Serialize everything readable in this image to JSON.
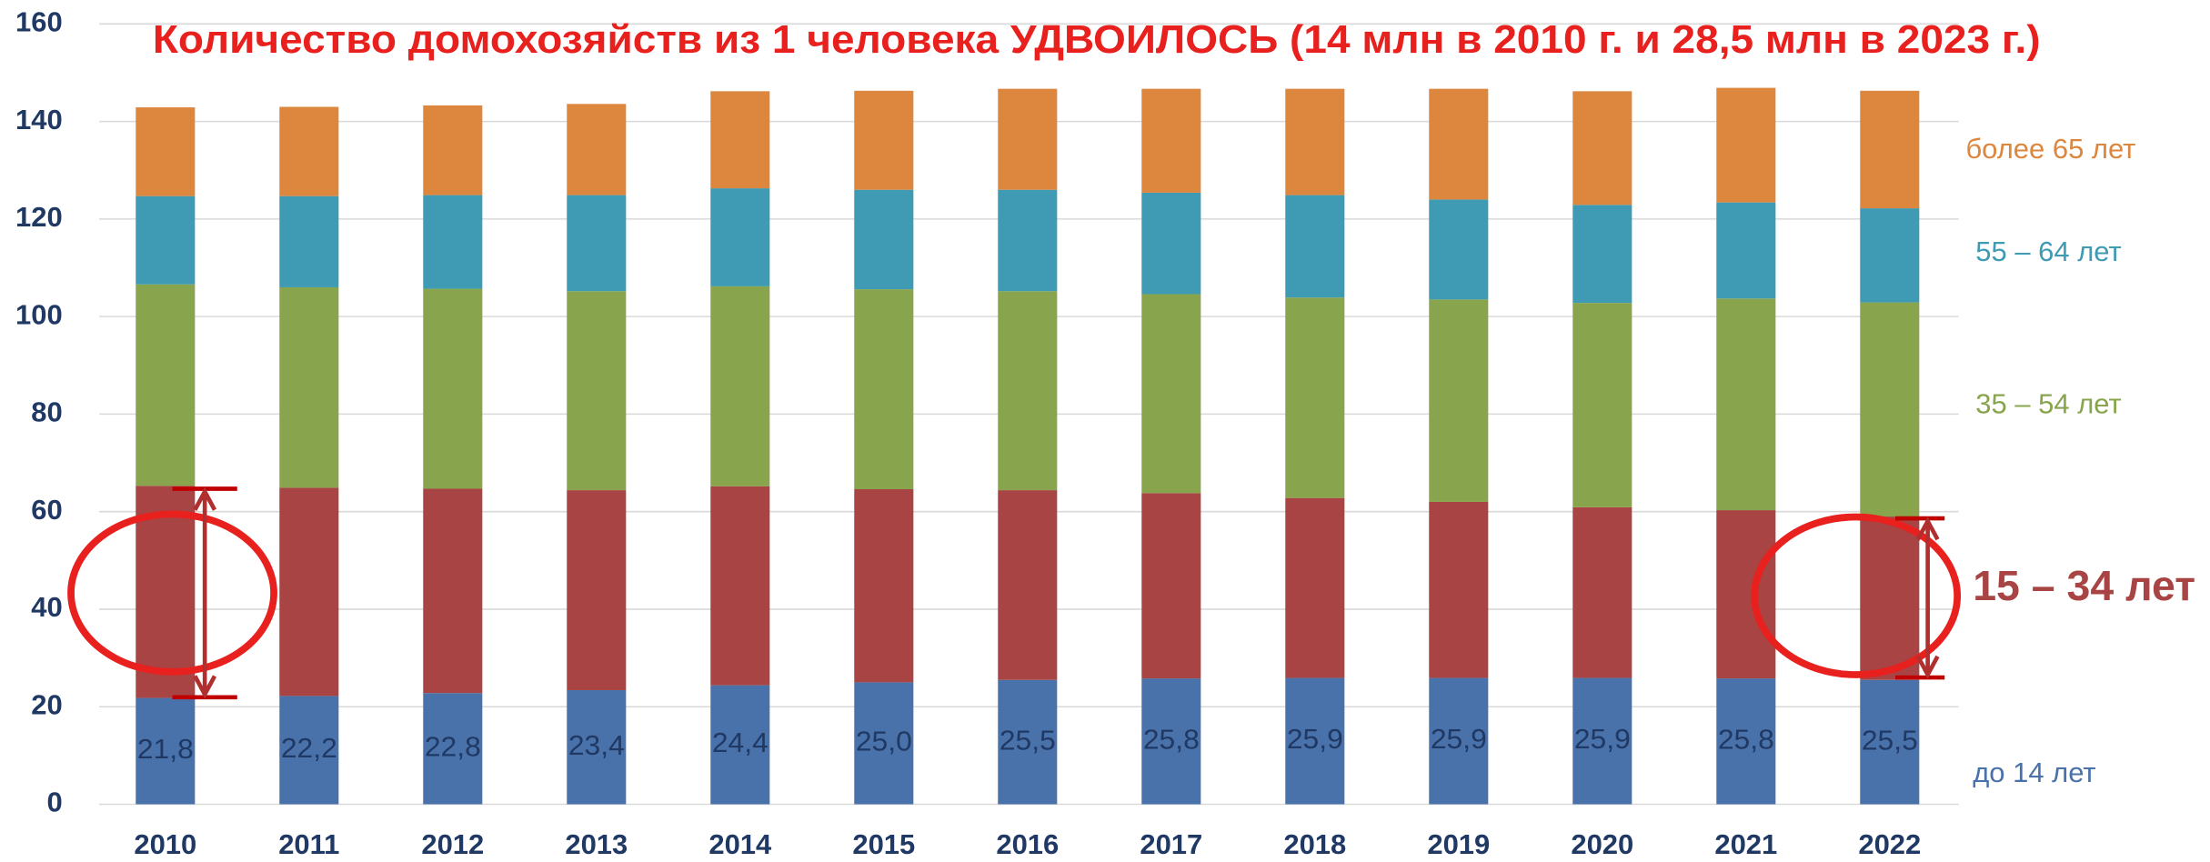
{
  "chart_data": {
    "type": "stacked_bar",
    "title": "Количество домохозяйств из 1 человека УДВОИЛОСЬ (14 млн в 2010 г. и 28,5 млн в 2023 г.)",
    "categories": [
      "2010",
      "2011",
      "2012",
      "2013",
      "2014",
      "2015",
      "2016",
      "2017",
      "2018",
      "2019",
      "2020",
      "2021",
      "2022"
    ],
    "series": [
      {
        "name": "до 14 лет",
        "color": "#4a72aa",
        "values": [
          21.8,
          22.2,
          22.8,
          23.4,
          24.4,
          25.0,
          25.5,
          25.8,
          25.9,
          25.9,
          25.9,
          25.8,
          25.5
        ],
        "value_labels": [
          "21,8",
          "22,2",
          "22,8",
          "23,4",
          "24,4",
          "25,0",
          "25,5",
          "25,8",
          "25,9",
          "25,9",
          "25,9",
          "25,8",
          "25,5"
        ]
      },
      {
        "name": "15 – 34 лет",
        "color": "#a84444",
        "values": [
          43.5,
          42.7,
          41.9,
          41.0,
          40.8,
          39.6,
          38.9,
          38.0,
          36.9,
          36.1,
          35.0,
          34.5,
          33.5
        ]
      },
      {
        "name": "35 – 54 лет",
        "color": "#88a44c",
        "values": [
          41.3,
          41.1,
          41.0,
          40.8,
          41.0,
          41.0,
          40.8,
          40.8,
          41.1,
          41.5,
          41.9,
          43.4,
          43.9
        ]
      },
      {
        "name": "55 – 64 лет",
        "color": "#3f9bb3",
        "values": [
          18.1,
          18.7,
          19.2,
          19.7,
          20.1,
          20.4,
          20.8,
          20.8,
          21.0,
          20.5,
          20.1,
          19.7,
          19.3
        ]
      },
      {
        "name": "более 65 лет",
        "color": "#dc863e",
        "values": [
          18.2,
          18.3,
          18.4,
          18.7,
          19.9,
          20.3,
          20.7,
          21.3,
          21.8,
          22.7,
          23.3,
          23.5,
          24.1
        ]
      }
    ],
    "ylim": [
      0,
      160
    ],
    "yticks": [
      0,
      20,
      40,
      60,
      80,
      100,
      120,
      140,
      160
    ],
    "grid": true
  }
}
